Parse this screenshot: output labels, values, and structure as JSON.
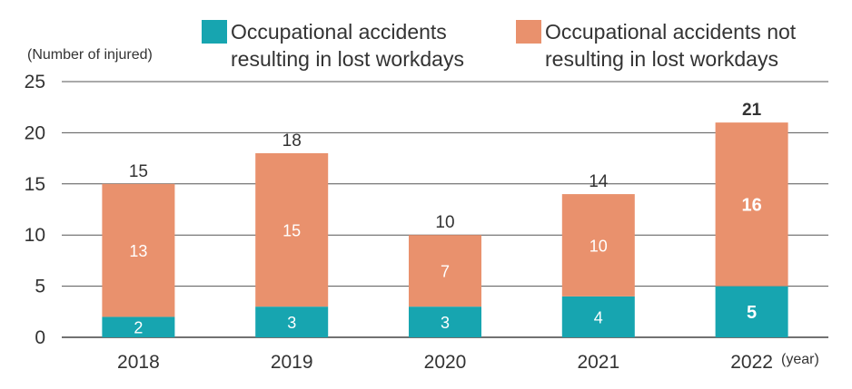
{
  "chart_data": {
    "type": "bar",
    "stacked": true,
    "categories": [
      "2018",
      "2019",
      "2020",
      "2021",
      "2022"
    ],
    "series": [
      {
        "name": "Occupational accidents resulting in lost workdays",
        "values": [
          2,
          3,
          3,
          4,
          5
        ],
        "color": "#17a5b0"
      },
      {
        "name": "Occupational accidents not resulting in lost workdays",
        "values": [
          13,
          15,
          7,
          10,
          16
        ],
        "color": "#e9916d"
      }
    ],
    "totals": [
      15,
      18,
      10,
      14,
      21
    ],
    "ylabel": "(Number of injured)",
    "xlabel": "(year)",
    "ylim": [
      0,
      25
    ],
    "yticks": [
      0,
      5,
      10,
      15,
      20,
      25
    ],
    "grid": true,
    "legend_position": "top-right",
    "highlight_category": "2022"
  },
  "legend": {
    "lost": "Occupational accidents\nresulting in lost workdays",
    "not_lost": "Occupational accidents not\nresulting in lost workdays"
  }
}
